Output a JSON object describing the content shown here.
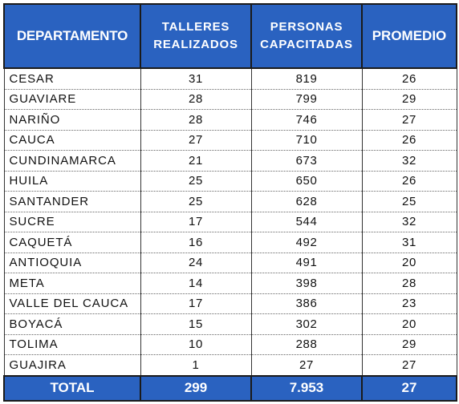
{
  "headers": {
    "departamento": "DEPARTAMENTO",
    "talleres_line1": "TALLERES",
    "talleres_line2": "REALIZADOS",
    "personas_line1": "PERSONAS",
    "personas_line2": "CAPACITADAS",
    "promedio": "PROMEDIO"
  },
  "rows": [
    {
      "departamento": "CESAR",
      "talleres": "31",
      "personas": "819",
      "promedio": "26"
    },
    {
      "departamento": "GUAVIARE",
      "talleres": "28",
      "personas": "799",
      "promedio": "29"
    },
    {
      "departamento": "NARIÑO",
      "talleres": "28",
      "personas": "746",
      "promedio": "27"
    },
    {
      "departamento": "CAUCA",
      "talleres": "27",
      "personas": "710",
      "promedio": "26"
    },
    {
      "departamento": "CUNDINAMARCA",
      "talleres": "21",
      "personas": "673",
      "promedio": "32"
    },
    {
      "departamento": "HUILA",
      "talleres": "25",
      "personas": "650",
      "promedio": "26"
    },
    {
      "departamento": "SANTANDER",
      "talleres": "25",
      "personas": "628",
      "promedio": "25"
    },
    {
      "departamento": "SUCRE",
      "talleres": "17",
      "personas": "544",
      "promedio": "32"
    },
    {
      "departamento": "CAQUETÁ",
      "talleres": "16",
      "personas": "492",
      "promedio": "31"
    },
    {
      "departamento": "ANTIOQUIA",
      "talleres": "24",
      "personas": "491",
      "promedio": "20"
    },
    {
      "departamento": "META",
      "talleres": "14",
      "personas": "398",
      "promedio": "28"
    },
    {
      "departamento": "VALLE DEL CAUCA",
      "talleres": "17",
      "personas": "386",
      "promedio": "23"
    },
    {
      "departamento": "BOYACÁ",
      "talleres": "15",
      "personas": "302",
      "promedio": "20"
    },
    {
      "departamento": "TOLIMA",
      "talleres": "10",
      "personas": "288",
      "promedio": "29"
    },
    {
      "departamento": "GUAJIRA",
      "talleres": "1",
      "personas": "27",
      "promedio": "27"
    }
  ],
  "total": {
    "label": "TOTAL",
    "talleres": "299",
    "personas": "7.953",
    "promedio": "27"
  },
  "colors": {
    "header_bg": "#2a62c0",
    "header_text": "#ffffff"
  }
}
